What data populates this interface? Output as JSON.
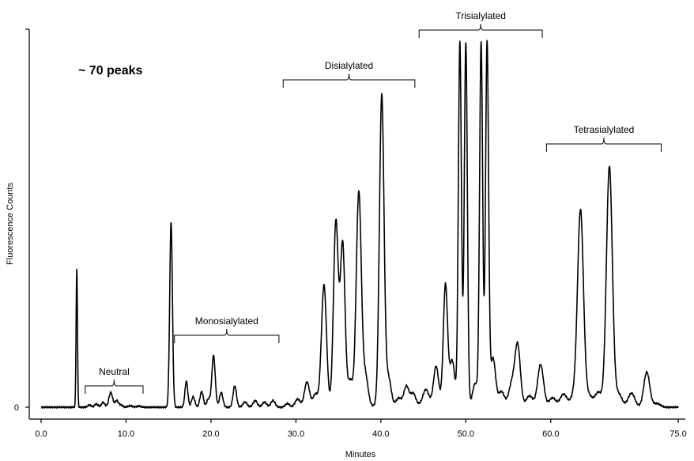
{
  "chart_data": {
    "type": "line",
    "title": "",
    "annotation": "~ 70 peaks",
    "xlabel": "Minutes",
    "ylabel": "Fluorescence Counts",
    "xlim": [
      0,
      75
    ],
    "ylim": [
      0,
      100
    ],
    "x_ticks": [
      "0.0",
      "10.0",
      "20.0",
      "30.0",
      "40.0",
      "50.0",
      "60.0",
      "75.0"
    ],
    "x_tick_values": [
      0,
      10,
      20,
      30,
      40,
      50,
      60,
      75
    ],
    "y_tick_label": "0",
    "grid": false,
    "groups": [
      {
        "label": "Neutral",
        "start": 5.2,
        "end": 12.0
      },
      {
        "label": "Monosialylated",
        "start": 15.7,
        "end": 28.0
      },
      {
        "label": "Disialylated",
        "start": 28.5,
        "end": 44.0
      },
      {
        "label": "Trisialylated",
        "start": 44.5,
        "end": 59.0
      },
      {
        "label": "Tetrasialylated",
        "start": 59.5,
        "end": 73.0
      }
    ],
    "series": [
      {
        "baseline": 0,
        "peaks": [
          [
            4.2,
            37.5,
            0.08
          ],
          [
            5.7,
            0.6,
            0.2
          ],
          [
            6.5,
            0.9,
            0.2
          ],
          [
            7.3,
            1.3,
            0.2
          ],
          [
            8.2,
            4.0,
            0.22
          ],
          [
            8.9,
            1.8,
            0.2
          ],
          [
            9.4,
            0.6,
            0.2
          ],
          [
            10.5,
            0.4,
            0.25
          ],
          [
            11.5,
            0.3,
            0.25
          ],
          [
            15.3,
            50.0,
            0.16
          ],
          [
            17.1,
            7.0,
            0.17
          ],
          [
            17.9,
            2.8,
            0.2
          ],
          [
            18.9,
            4.2,
            0.2
          ],
          [
            19.7,
            2.2,
            0.2
          ],
          [
            20.3,
            14.0,
            0.2
          ],
          [
            21.2,
            4.0,
            0.2
          ],
          [
            22.8,
            5.8,
            0.2
          ],
          [
            24.0,
            1.4,
            0.25
          ],
          [
            25.2,
            1.8,
            0.25
          ],
          [
            26.3,
            1.4,
            0.25
          ],
          [
            27.3,
            1.8,
            0.25
          ],
          [
            29.0,
            1.0,
            0.25
          ],
          [
            30.2,
            2.2,
            0.3
          ],
          [
            31.3,
            6.8,
            0.3
          ],
          [
            32.3,
            3.5,
            0.3
          ],
          [
            33.3,
            33.0,
            0.3
          ],
          [
            34.7,
            50.0,
            0.28
          ],
          [
            35.5,
            44.0,
            0.28
          ],
          [
            36.4,
            7.0,
            0.3
          ],
          [
            37.4,
            58.0,
            0.3
          ],
          [
            38.2,
            8.0,
            0.3
          ],
          [
            40.1,
            84.0,
            0.27
          ],
          [
            40.9,
            7.5,
            0.3
          ],
          [
            42.1,
            2.0,
            0.3
          ],
          [
            43.0,
            5.2,
            0.3
          ],
          [
            43.8,
            3.2,
            0.3
          ],
          [
            45.3,
            4.2,
            0.35
          ],
          [
            46.5,
            10.5,
            0.3
          ],
          [
            47.6,
            32.5,
            0.25
          ],
          [
            48.4,
            12.0,
            0.3
          ],
          [
            49.3,
            98.0,
            0.18
          ],
          [
            50.0,
            98.0,
            0.18
          ],
          [
            51.1,
            6.0,
            0.3
          ],
          [
            51.8,
            98.0,
            0.18
          ],
          [
            52.5,
            98.0,
            0.18
          ],
          [
            53.2,
            13.0,
            0.3
          ],
          [
            54.2,
            4.0,
            0.35
          ],
          [
            55.4,
            6.0,
            0.35
          ],
          [
            56.1,
            16.5,
            0.32
          ],
          [
            57.5,
            3.0,
            0.4
          ],
          [
            58.8,
            11.5,
            0.35
          ],
          [
            60.2,
            2.5,
            0.4
          ],
          [
            61.5,
            3.5,
            0.4
          ],
          [
            62.7,
            2.8,
            0.4
          ],
          [
            63.5,
            53.0,
            0.35
          ],
          [
            64.5,
            3.0,
            0.4
          ],
          [
            65.6,
            4.0,
            0.4
          ],
          [
            66.9,
            65.0,
            0.35
          ],
          [
            68.0,
            3.5,
            0.4
          ],
          [
            69.5,
            3.8,
            0.4
          ],
          [
            71.3,
            9.5,
            0.35
          ],
          [
            72.5,
            1.0,
            0.4
          ]
        ]
      }
    ],
    "line_color": "#000000"
  }
}
